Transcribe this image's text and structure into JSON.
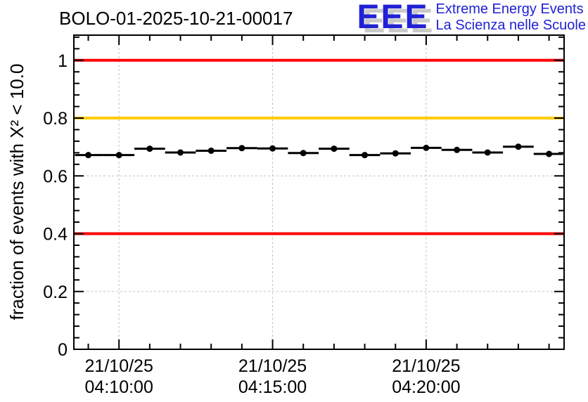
{
  "header": {
    "title": "BOLO-01-2025-10-21-00017"
  },
  "logo": {
    "acronym": "EEE",
    "line1": "Extreme Energy Events",
    "line2": "La Scienza nelle Scuole",
    "text_color": "#2121d6",
    "shadow_color": "#c9c9c9"
  },
  "chart_data": {
    "type": "scatter",
    "title": "BOLO-01-2025-10-21-00017",
    "ylabel": "fraction of events with X² < 10.0",
    "xlabel": "",
    "x_axis": {
      "kind": "time",
      "major_tick_labels": [
        [
          "21/10/25",
          "04:10:00"
        ],
        [
          "21/10/25",
          "04:15:00"
        ],
        [
          "21/10/25",
          "04:20:00"
        ]
      ],
      "major_tick_minutes": [
        0,
        5,
        10
      ],
      "minor_step_minutes": 1,
      "xlim_minutes": [
        -1.47,
        14.49
      ]
    },
    "y_axis": {
      "title": "fraction of events with X² < 10.0",
      "major_ticks": [
        0,
        0.2,
        0.4,
        0.6,
        0.8,
        1
      ],
      "major_tick_labels": [
        "0",
        "0.2",
        "0.4",
        "0.6",
        "0.8",
        "1"
      ],
      "minor_step": 0.04,
      "ylim": [
        0,
        1.087
      ]
    },
    "grid": {
      "show": true,
      "color": "#c3c3c3",
      "dash": "3,3"
    },
    "reference_lines": [
      {
        "y": 1.0,
        "color": "#ff0000"
      },
      {
        "y": 0.8,
        "color": "#ffcc00"
      },
      {
        "y": 0.4,
        "color": "#ff0000"
      }
    ],
    "series": [
      {
        "name": "fraction of events with X² < 10.0",
        "marker": "filled-circle",
        "color": "#000000",
        "date": "21/10/25",
        "xerr_minutes": 0.5,
        "points": [
          {
            "time": "04:09:00",
            "x_minutes": -1,
            "y": 0.672
          },
          {
            "time": "04:10:00",
            "x_minutes": 0,
            "y": 0.672
          },
          {
            "time": "04:11:00",
            "x_minutes": 1,
            "y": 0.694
          },
          {
            "time": "04:12:00",
            "x_minutes": 2,
            "y": 0.681
          },
          {
            "time": "04:13:00",
            "x_minutes": 3,
            "y": 0.687
          },
          {
            "time": "04:14:00",
            "x_minutes": 4,
            "y": 0.696
          },
          {
            "time": "04:15:00",
            "x_minutes": 5,
            "y": 0.695
          },
          {
            "time": "04:16:00",
            "x_minutes": 6,
            "y": 0.679
          },
          {
            "time": "04:17:00",
            "x_minutes": 7,
            "y": 0.694
          },
          {
            "time": "04:18:00",
            "x_minutes": 8,
            "y": 0.672
          },
          {
            "time": "04:19:00",
            "x_minutes": 9,
            "y": 0.678
          },
          {
            "time": "04:20:00",
            "x_minutes": 10,
            "y": 0.697
          },
          {
            "time": "04:21:00",
            "x_minutes": 11,
            "y": 0.69
          },
          {
            "time": "04:22:00",
            "x_minutes": 12,
            "y": 0.681
          },
          {
            "time": "04:23:00",
            "x_minutes": 13,
            "y": 0.701
          },
          {
            "time": "04:24:00",
            "x_minutes": 14,
            "y": 0.676
          }
        ]
      }
    ]
  }
}
